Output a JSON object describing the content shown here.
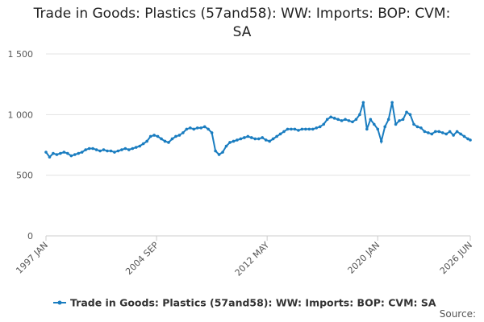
{
  "chart_data": {
    "type": "line",
    "title": "Trade in Goods: Plastics (57and58): WW: Imports: BOP: CVM: SA",
    "source": "Source:",
    "x": [
      1997.0,
      1997.25,
      1997.5,
      1997.75,
      1998.0,
      1998.25,
      1998.5,
      1998.75,
      1999.0,
      1999.25,
      1999.5,
      1999.75,
      2000.0,
      2000.25,
      2000.5,
      2000.75,
      2001.0,
      2001.25,
      2001.5,
      2001.75,
      2002.0,
      2002.25,
      2002.5,
      2002.75,
      2003.0,
      2003.25,
      2003.5,
      2003.75,
      2004.0,
      2004.25,
      2004.5,
      2004.75,
      2005.0,
      2005.25,
      2005.5,
      2005.75,
      2006.0,
      2006.25,
      2006.5,
      2006.75,
      2007.0,
      2007.25,
      2007.5,
      2007.75,
      2008.0,
      2008.25,
      2008.5,
      2008.75,
      2009.0,
      2009.25,
      2009.5,
      2009.75,
      2010.0,
      2010.25,
      2010.5,
      2010.75,
      2011.0,
      2011.25,
      2011.5,
      2011.75,
      2012.0,
      2012.25,
      2012.5,
      2012.75,
      2013.0,
      2013.25,
      2013.5,
      2013.75,
      2014.0,
      2014.25,
      2014.5,
      2014.75,
      2015.0,
      2015.25,
      2015.5,
      2015.75,
      2016.0,
      2016.25,
      2016.5,
      2016.75,
      2017.0,
      2017.25,
      2017.5,
      2017.75,
      2018.0,
      2018.25,
      2018.5,
      2018.75,
      2019.0,
      2019.25,
      2019.5,
      2019.75,
      2020.0,
      2020.25,
      2020.5,
      2020.75,
      2021.0,
      2021.25,
      2021.5,
      2021.75,
      2022.0,
      2022.25,
      2022.5,
      2022.75,
      2023.0,
      2023.25,
      2023.5,
      2023.75,
      2024.0,
      2024.25,
      2024.5,
      2024.75,
      2025.0,
      2025.25,
      2025.5,
      2025.75,
      2026.0,
      2026.25,
      2026.417
    ],
    "series": [
      {
        "name": "Trade in Goods: Plastics (57and58): WW: Imports: BOP: CVM: SA",
        "color": "#1a7dc0",
        "values": [
          690,
          650,
          680,
          670,
          680,
          690,
          680,
          660,
          670,
          680,
          690,
          710,
          720,
          720,
          710,
          700,
          710,
          700,
          700,
          690,
          700,
          710,
          720,
          710,
          720,
          730,
          740,
          760,
          780,
          820,
          830,
          820,
          800,
          780,
          770,
          800,
          820,
          830,
          850,
          880,
          890,
          880,
          890,
          890,
          900,
          880,
          850,
          700,
          670,
          690,
          740,
          770,
          780,
          790,
          800,
          810,
          820,
          810,
          800,
          800,
          810,
          790,
          780,
          800,
          820,
          840,
          860,
          880,
          880,
          880,
          870,
          880,
          880,
          880,
          880,
          890,
          900,
          920,
          960,
          980,
          970,
          960,
          950,
          960,
          950,
          940,
          960,
          1000,
          1100,
          880,
          960,
          920,
          880,
          780,
          900,
          960,
          1100,
          920,
          950,
          960,
          1020,
          1000,
          920,
          900,
          890,
          860,
          850,
          840,
          860,
          860,
          850,
          840,
          860,
          830,
          860,
          840,
          820,
          800,
          790
        ]
      }
    ],
    "xlim": [
      1997.0,
      2026.417
    ],
    "xticks": [
      {
        "value": 1997.0,
        "label": "1997 JAN"
      },
      {
        "value": 2004.667,
        "label": "2004 SEP"
      },
      {
        "value": 2012.333,
        "label": "2012 MAY"
      },
      {
        "value": 2020.0,
        "label": "2020 JAN"
      },
      {
        "value": 2026.417,
        "label": "2026 JUN"
      }
    ],
    "ylim": [
      0,
      1500
    ],
    "yticks": [
      0,
      500,
      {
        "value": 1000,
        "label": "1 000"
      },
      {
        "value": 1500,
        "label": "1 500"
      }
    ],
    "grid": true,
    "legend": "bottom"
  }
}
